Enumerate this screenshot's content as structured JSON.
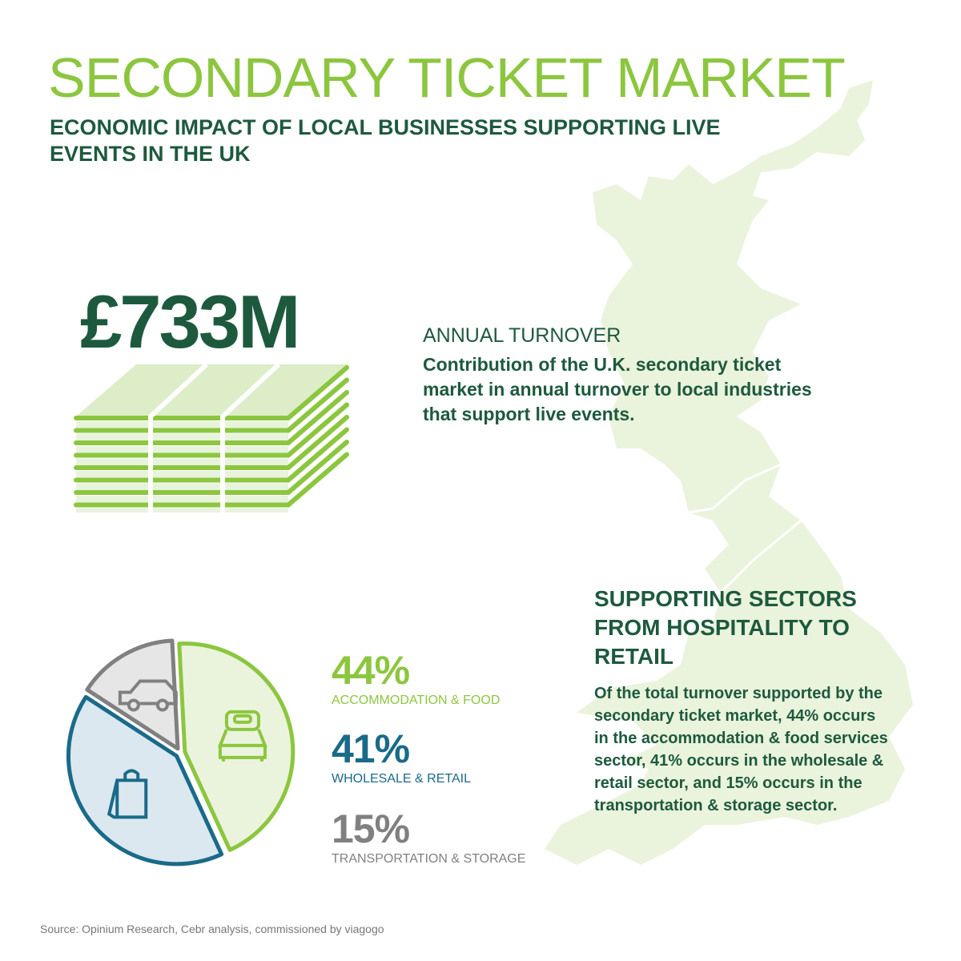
{
  "header": {
    "title": "SECONDARY TICKET MARKET",
    "subtitle": "ECONOMIC IMPACT OF LOCAL BUSINESSES SUPPORTING LIVE EVENTS IN THE UK"
  },
  "turnover": {
    "amount": "£733M",
    "heading": "ANNUAL TURNOVER",
    "description": "Contribution of the U.K. secondary ticket market in annual turnover to local industries that support live events."
  },
  "sectors": {
    "heading": "SUPPORTING SECTORS FROM HOSPITALITY TO RETAIL",
    "description": "Of the total turnover supported by the secondary ticket market, 44% occurs in the accommodation & food services sector, 41% occurs in the wholesale & retail sector, and 15% occurs in the transportation & storage sector."
  },
  "chart_data": {
    "type": "pie",
    "categories": [
      "ACCOMMODATION & FOOD",
      "WHOLESALE & RETAIL",
      "TRANSPORTATION & STORAGE"
    ],
    "values": [
      44,
      41,
      15
    ],
    "labels": [
      "44%",
      "41%",
      "15%"
    ],
    "colors": [
      "#8cc63f",
      "#1a6a8a",
      "#808080"
    ],
    "icons": [
      "bed-icon",
      "shopping-bag-icon",
      "car-icon"
    ]
  },
  "source": "Source: Opinium Research, Cebr analysis, commissioned by viagogo"
}
